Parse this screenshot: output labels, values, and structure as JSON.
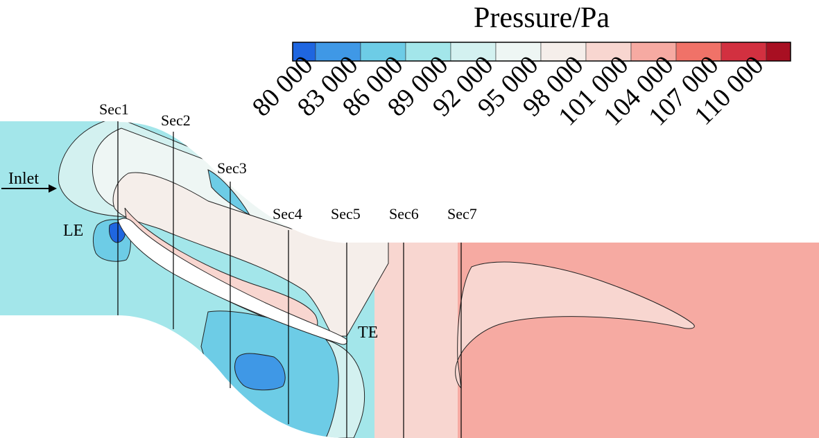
{
  "figure": {
    "title": "Pressure/Pa",
    "colorbar": {
      "ticks": [
        "80 000",
        "83 000",
        "86 000",
        "89 000",
        "92 000",
        "95 000",
        "98 000",
        "101 000",
        "104 000",
        "107 000",
        "110 000"
      ],
      "colors": [
        "#1f66e0",
        "#3f98e6",
        "#6dcce6",
        "#a3e6ea",
        "#d3f1f0",
        "#eef6f4",
        "#f5eeea",
        "#f8d6d0",
        "#f6aaa2",
        "#f07268",
        "#d23040",
        "#a80f22"
      ]
    },
    "labels": {
      "inlet": "Inlet",
      "le": "LE",
      "te": "TE"
    },
    "sections": [
      "Sec1",
      "Sec2",
      "Sec3",
      "Sec4",
      "Sec5",
      "Sec6",
      "Sec7"
    ]
  }
}
